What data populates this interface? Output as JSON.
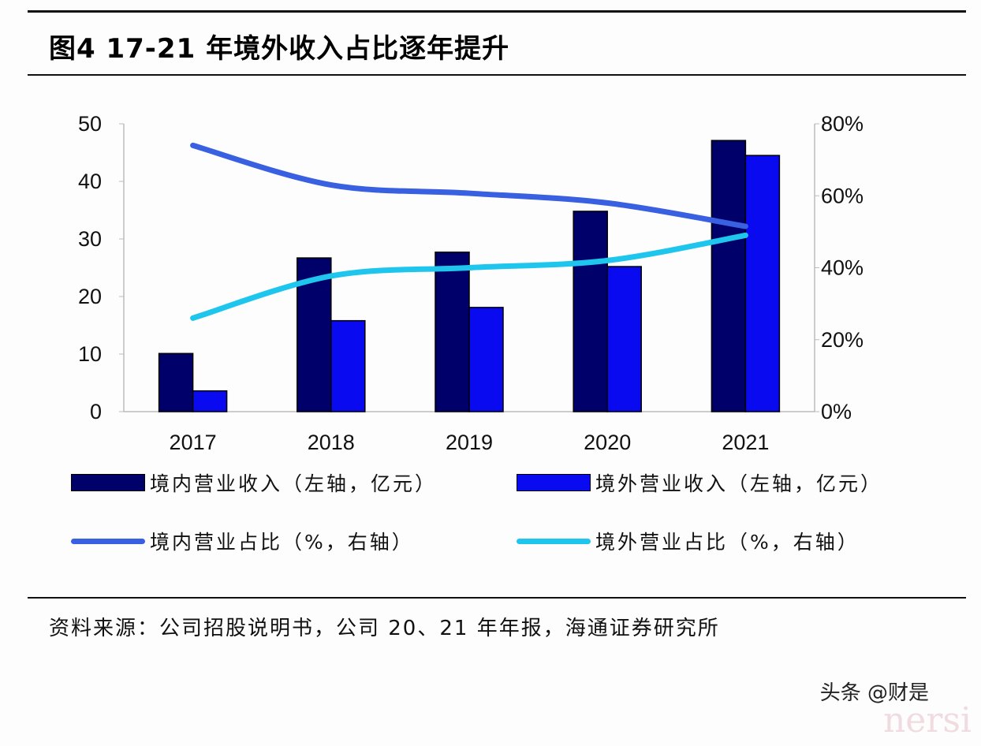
{
  "title": "图4   17-21 年境外收入占比逐年提升",
  "source": "资料来源：公司招股说明书，公司 20、21 年年报，海通证券研究所",
  "watermark": "头条 @财是",
  "watermark_faint": "nersi",
  "chart_data": {
    "type": "bar",
    "title": "17-21 年境外收入占比逐年提升",
    "categories": [
      "2017",
      "2018",
      "2019",
      "2020",
      "2021"
    ],
    "left_axis": {
      "ylim": [
        0,
        50
      ],
      "ticks": [
        "0",
        "10",
        "20",
        "30",
        "40",
        "50"
      ],
      "tick_values": [
        0,
        10,
        20,
        30,
        40,
        50
      ]
    },
    "right_axis": {
      "ylim": [
        0,
        80
      ],
      "ticks": [
        "0%",
        "20%",
        "40%",
        "60%",
        "80%"
      ],
      "tick_values": [
        0,
        20,
        40,
        60,
        80
      ]
    },
    "series": [
      {
        "name": "境内营业收入（左轴，亿元）",
        "type": "bar",
        "axis": "left",
        "color": "#00006a",
        "values": [
          10.1,
          26.7,
          27.7,
          34.8,
          47.1
        ]
      },
      {
        "name": "境外营业收入（左轴，亿元）",
        "type": "bar",
        "axis": "left",
        "color": "#0a0af0",
        "values": [
          3.6,
          15.8,
          18.1,
          25.2,
          44.5
        ]
      },
      {
        "name": "境内营业占比（%，右轴）",
        "type": "line",
        "axis": "right",
        "color": "#3860e0",
        "values": [
          74,
          63,
          60.7,
          58,
          51.5
        ]
      },
      {
        "name": "境外营业占比（%，右轴）",
        "type": "line",
        "axis": "right",
        "color": "#1ec6ee",
        "values": [
          26,
          37.7,
          40,
          42,
          49
        ]
      }
    ],
    "legend_position": "bottom",
    "grid": false
  }
}
